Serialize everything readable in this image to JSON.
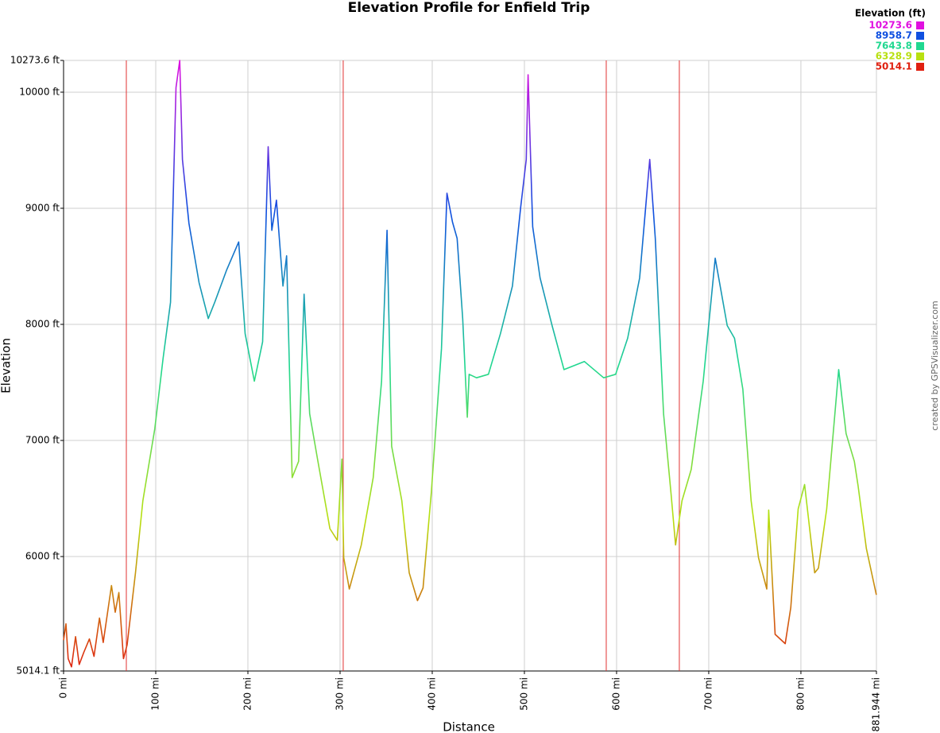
{
  "chart_data": {
    "type": "line",
    "title": "Elevation Profile for Enfield Trip",
    "x_label": "Distance",
    "y_label": "Elevation",
    "credit": "created by GPSVisualizer.com",
    "xlim": [
      0,
      881.944
    ],
    "ylim": [
      5014.1,
      10273.6
    ],
    "xticks": [
      {
        "value": 0,
        "label": "0 mi"
      },
      {
        "value": 100,
        "label": "100 mi"
      },
      {
        "value": 200,
        "label": "200 mi"
      },
      {
        "value": 300,
        "label": "300 mi"
      },
      {
        "value": 400,
        "label": "400 mi"
      },
      {
        "value": 500,
        "label": "500 mi"
      },
      {
        "value": 600,
        "label": "600 mi"
      },
      {
        "value": 700,
        "label": "700 mi"
      },
      {
        "value": 800,
        "label": "800 mi"
      },
      {
        "value": 881.944,
        "label": "881.944 mi"
      }
    ],
    "yticks": [
      {
        "value": 5014.1,
        "label": "5014.1 ft"
      },
      {
        "value": 6000,
        "label": "6000 ft"
      },
      {
        "value": 7000,
        "label": "7000 ft"
      },
      {
        "value": 8000,
        "label": "8000 ft"
      },
      {
        "value": 9000,
        "label": "9000 ft"
      },
      {
        "value": 10000,
        "label": "10000 ft"
      },
      {
        "value": 10273.6,
        "label": "10273.6 ft"
      }
    ],
    "grid": true,
    "segment_breaks": [
      68.1,
      303.4,
      588.8,
      668.1
    ],
    "segment_break_color": "#e03030",
    "color_scale": {
      "title": "Elevation (ft)",
      "stops": [
        {
          "value": 10273.6,
          "color": "#e010e0"
        },
        {
          "value": 8958.7,
          "color": "#1050e0"
        },
        {
          "value": 7643.8,
          "color": "#20d890"
        },
        {
          "value": 6328.9,
          "color": "#b8e010"
        },
        {
          "value": 5014.1,
          "color": "#e02010"
        }
      ]
    },
    "x": [
      0,
      2.6,
      5,
      8.6,
      13,
      17,
      22,
      28,
      33,
      39,
      43,
      52,
      56,
      60,
      65,
      69,
      78,
      86,
      99,
      108,
      116,
      122,
      126,
      129,
      136,
      147,
      157,
      164,
      177,
      190,
      197,
      207,
      216,
      222,
      226,
      231,
      238,
      242,
      248,
      255,
      261,
      267,
      276,
      289,
      297,
      302,
      304,
      310,
      323,
      336,
      345,
      351,
      356,
      367,
      375,
      384,
      390,
      399,
      410,
      416,
      422,
      427,
      433,
      438,
      440,
      448,
      461,
      474,
      487,
      496,
      502,
      504,
      509,
      517,
      530,
      543,
      565,
      586,
      599,
      612,
      625,
      636,
      642,
      651,
      659,
      664,
      671,
      681,
      694,
      707,
      720,
      728,
      737,
      746,
      754,
      763,
      765,
      772,
      783,
      789,
      797,
      804,
      815,
      819,
      828,
      841,
      849,
      858,
      862,
      871,
      881.9
    ],
    "y": [
      5280,
      5420,
      5120,
      5050,
      5310,
      5070,
      5175,
      5290,
      5140,
      5470,
      5260,
      5750,
      5520,
      5690,
      5120,
      5240,
      5860,
      6480,
      7100,
      7710,
      8190,
      10040,
      10273.6,
      9420,
      8870,
      8360,
      8050,
      8190,
      8470,
      8710,
      7920,
      7510,
      7850,
      9530,
      8810,
      9070,
      8330,
      8590,
      6680,
      6820,
      8260,
      7230,
      6820,
      6240,
      6140,
      6840,
      5990,
      5720,
      6100,
      6680,
      7510,
      8810,
      6950,
      6480,
      5860,
      5620,
      5730,
      6550,
      7790,
      9130,
      8880,
      8740,
      8050,
      7200,
      7570,
      7540,
      7570,
      7920,
      8330,
      9010,
      9420,
      10150,
      8840,
      8400,
      7990,
      7610,
      7680,
      7540,
      7570,
      7880,
      8400,
      9420,
      8740,
      7230,
      6550,
      6100,
      6480,
      6750,
      7510,
      8570,
      7990,
      7880,
      7440,
      6480,
      5990,
      5720,
      6400,
      5330,
      5250,
      5560,
      6410,
      6620,
      5860,
      5900,
      6410,
      7610,
      7060,
      6820,
      6610,
      6070,
      5670
    ]
  }
}
